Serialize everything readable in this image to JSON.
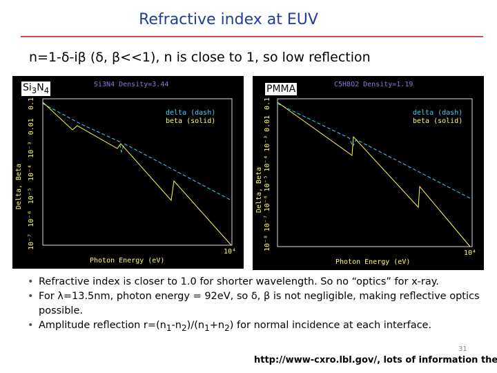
{
  "title": "Refractive index  at EUV",
  "subtitle": "n=1-δ-iβ (δ, β<<1), n is close to 1, so low reflection",
  "panels": [
    {
      "label": [
        "Si",
        "3",
        "N",
        "4"
      ],
      "plot_title": "Si3N4 Density=3.44",
      "legend": [
        "delta (dash)",
        "beta (solid)"
      ],
      "x_label": "Photon Energy (eV)",
      "y_label": "Delta, Beta",
      "y_ticks": [
        "0.1",
        "0.01",
        "10⁻³",
        "10⁻⁴",
        "10⁻⁵",
        "10⁻⁶",
        "10⁻⁷"
      ],
      "x_tick": "10⁴"
    },
    {
      "label": [
        "PMMA"
      ],
      "plot_title": "C5H8O2 Density=1.19",
      "legend": [
        "delta (dash)",
        "beta (solid)"
      ],
      "x_label": "Photon Energy (eV)",
      "y_label": "Delta, Beta",
      "y_ticks": [
        "0.1",
        "0.01",
        "10⁻³",
        "10⁻⁴",
        "10⁻⁵",
        "10⁻⁶",
        "10⁻⁷",
        "10⁻⁸"
      ],
      "x_tick": "10⁴"
    }
  ],
  "bullets": [
    [
      "Refractive index is closer to 1.0 for shorter wavelength. So no “optics” for x-ray."
    ],
    [
      "For λ=13.5nm, photon energy = 92eV, so δ, β is not negligible, making reflective optics possible."
    ],
    [
      "Amplitude reflection r=(n",
      "1",
      "-n",
      "2",
      ")/(n",
      "1",
      "+n",
      "2",
      ") for normal incidence at each interface."
    ]
  ],
  "page_number": "31",
  "footer": "http://www-cxro.lbl.gov/, lots of information there"
}
